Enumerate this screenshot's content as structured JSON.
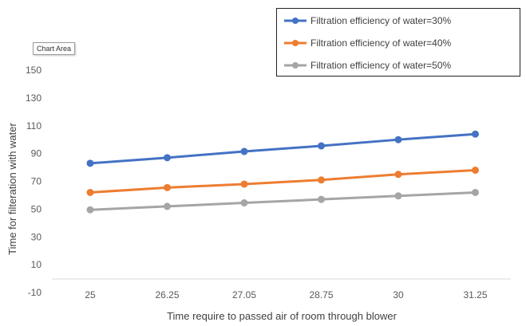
{
  "tooltip": "Chart Area",
  "chart_data": {
    "type": "line",
    "categories": [
      "25",
      "26.25",
      "27.05",
      "28.75",
      "30",
      "31.25"
    ],
    "series": [
      {
        "name": "Filtration efficiency of water=30%",
        "color": "#4472C4",
        "values": [
          83,
          87,
          91.5,
          95.5,
          100,
          104
        ]
      },
      {
        "name": "Filtration efficiency of water=40%",
        "color": "#ED7D31",
        "values": [
          62,
          65.5,
          68,
          71,
          75,
          78
        ]
      },
      {
        "name": "Filtration efficiency of water=50%",
        "color": "#A5A5A5",
        "values": [
          49.5,
          52,
          54.5,
          57,
          59.5,
          62
        ]
      }
    ],
    "yticks": [
      150,
      130,
      110,
      90,
      70,
      50,
      30,
      10,
      -10
    ],
    "ylim": [
      -10,
      150
    ],
    "xlabel": "Time require to passed air of room through blower",
    "ylabel": "Time for filteration with water",
    "legend_position": "top-right",
    "grid": false
  }
}
